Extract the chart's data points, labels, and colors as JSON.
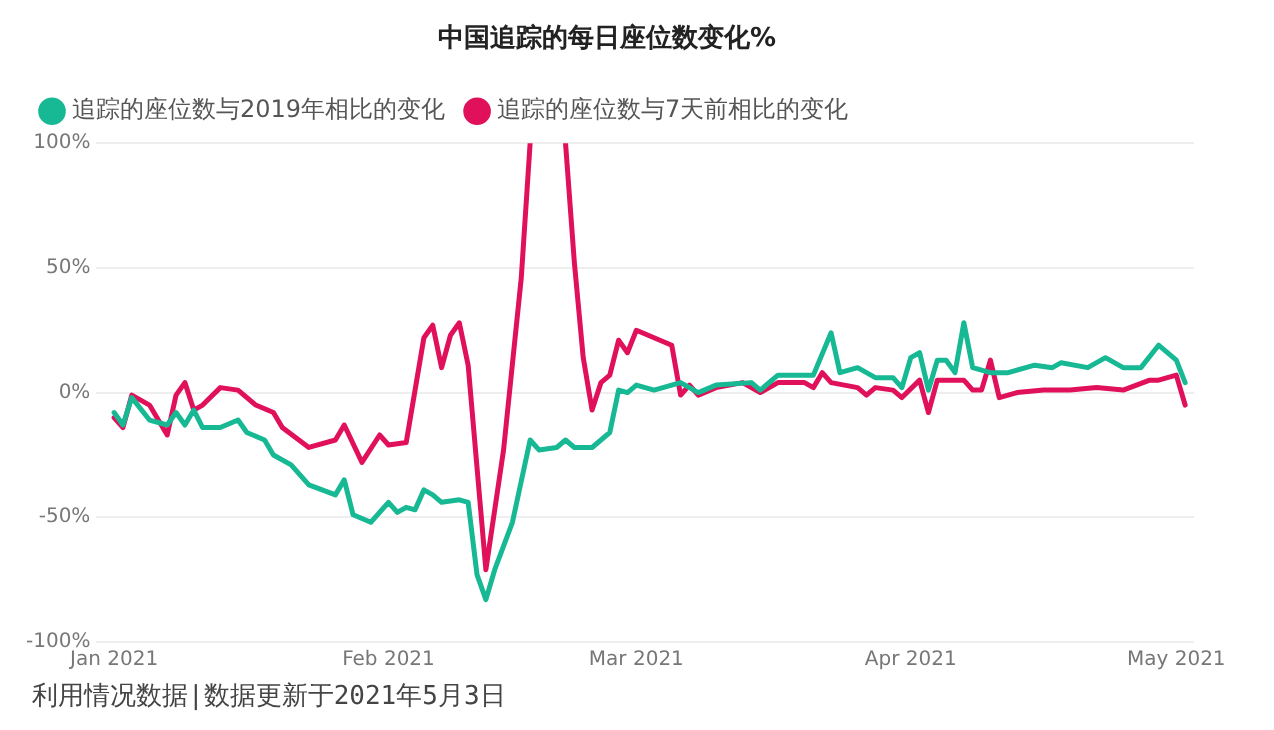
{
  "chart_data": {
    "type": "line",
    "title": "中国追踪的每日座位数变化%",
    "xlim": [
      "2020-12-30",
      "2021-05-03"
    ],
    "xticks": [
      {
        "value": "2021-01-01",
        "label": "Jan 2021"
      },
      {
        "value": "2021-02-01",
        "label": "Feb 2021"
      },
      {
        "value": "2021-03-01",
        "label": "Mar 2021"
      },
      {
        "value": "2021-04-01",
        "label": "Apr 2021"
      },
      {
        "value": "2021-05-01",
        "label": "May 2021"
      }
    ],
    "ylim": [
      -100,
      100
    ],
    "yticks": [
      {
        "value": -100,
        "label": "-100%"
      },
      {
        "value": -50,
        "label": "-50%"
      },
      {
        "value": 0,
        "label": "0%"
      },
      {
        "value": 50,
        "label": "50%"
      },
      {
        "value": 100,
        "label": "100%"
      }
    ],
    "grid": "y",
    "legend": "top left",
    "marker": "none",
    "line_style": "solid",
    "series": [
      {
        "name": "追踪的座位数与2019年相比的变化",
        "color": "#17b894",
        "x": [
          "2021-01-01",
          "2021-01-02",
          "2021-01-03",
          "2021-01-05",
          "2021-01-07",
          "2021-01-08",
          "2021-01-09",
          "2021-01-10",
          "2021-01-11",
          "2021-01-13",
          "2021-01-15",
          "2021-01-16",
          "2021-01-18",
          "2021-01-19",
          "2021-01-21",
          "2021-01-23",
          "2021-01-26",
          "2021-01-27",
          "2021-01-28",
          "2021-01-30",
          "2021-02-01",
          "2021-02-02",
          "2021-02-03",
          "2021-02-04",
          "2021-02-05",
          "2021-02-06",
          "2021-02-07",
          "2021-02-09",
          "2021-02-10",
          "2021-02-11",
          "2021-02-12",
          "2021-02-13",
          "2021-02-15",
          "2021-02-17",
          "2021-02-18",
          "2021-02-20",
          "2021-02-21",
          "2021-02-22",
          "2021-02-24",
          "2021-02-25",
          "2021-02-26",
          "2021-02-27",
          "2021-02-28",
          "2021-03-01",
          "2021-03-03",
          "2021-03-06",
          "2021-03-08",
          "2021-03-10",
          "2021-03-14",
          "2021-03-15",
          "2021-03-17",
          "2021-03-21",
          "2021-03-23",
          "2021-03-24",
          "2021-03-26",
          "2021-03-28",
          "2021-03-30",
          "2021-03-31",
          "2021-04-01",
          "2021-04-02",
          "2021-04-03",
          "2021-04-04",
          "2021-04-05",
          "2021-04-06",
          "2021-04-07",
          "2021-04-08",
          "2021-04-10",
          "2021-04-12",
          "2021-04-15",
          "2021-04-17",
          "2021-04-18",
          "2021-04-21",
          "2021-04-23",
          "2021-04-25",
          "2021-04-27",
          "2021-04-29",
          "2021-05-01",
          "2021-05-02"
        ],
        "values": [
          -8,
          -13,
          -2,
          -11,
          -13,
          -8,
          -13,
          -7,
          -14,
          -14,
          -11,
          -16,
          -19,
          -25,
          -29,
          -37,
          -41,
          -35,
          -49,
          -52,
          -44,
          -48,
          -46,
          -47,
          -39,
          -41,
          -44,
          -43,
          -44,
          -73,
          -83,
          -71,
          -52,
          -19,
          -23,
          -22,
          -19,
          -22,
          -22,
          -19,
          -16,
          1,
          0,
          3,
          1,
          4,
          0,
          3,
          4,
          1,
          7,
          7,
          24,
          8,
          10,
          6,
          6,
          2,
          14,
          16,
          1,
          13,
          13,
          8,
          28,
          10,
          8,
          8,
          11,
          10,
          12,
          10,
          14,
          10,
          10,
          19,
          13,
          4
        ]
      },
      {
        "name": "追踪的座位数与7天前相比的变化",
        "color": "#e0105a",
        "x": [
          "2021-01-01",
          "2021-01-02",
          "2021-01-03",
          "2021-01-05",
          "2021-01-07",
          "2021-01-08",
          "2021-01-09",
          "2021-01-10",
          "2021-01-11",
          "2021-01-13",
          "2021-01-15",
          "2021-01-17",
          "2021-01-19",
          "2021-01-20",
          "2021-01-23",
          "2021-01-26",
          "2021-01-27",
          "2021-01-29",
          "2021-01-31",
          "2021-02-01",
          "2021-02-03",
          "2021-02-05",
          "2021-02-06",
          "2021-02-07",
          "2021-02-08",
          "2021-02-09",
          "2021-02-10",
          "2021-02-12",
          "2021-02-14",
          "2021-02-16",
          "2021-02-17",
          "2021-02-18",
          "2021-02-20",
          "2021-02-21",
          "2021-02-22",
          "2021-02-23",
          "2021-02-24",
          "2021-02-25",
          "2021-02-26",
          "2021-02-27",
          "2021-02-28",
          "2021-03-01",
          "2021-03-03",
          "2021-03-05",
          "2021-03-06",
          "2021-03-07",
          "2021-03-08",
          "2021-03-10",
          "2021-03-13",
          "2021-03-15",
          "2021-03-17",
          "2021-03-20",
          "2021-03-21",
          "2021-03-22",
          "2021-03-23",
          "2021-03-26",
          "2021-03-27",
          "2021-03-28",
          "2021-03-30",
          "2021-03-31",
          "2021-04-02",
          "2021-04-03",
          "2021-04-04",
          "2021-04-07",
          "2021-04-08",
          "2021-04-09",
          "2021-04-10",
          "2021-04-11",
          "2021-04-13",
          "2021-04-16",
          "2021-04-19",
          "2021-04-22",
          "2021-04-25",
          "2021-04-28",
          "2021-04-29",
          "2021-05-01",
          "2021-05-02"
        ],
        "values": [
          -10,
          -14,
          -1,
          -5,
          -17,
          -1,
          4,
          -7,
          -5,
          2,
          1,
          -5,
          -8,
          -14,
          -22,
          -19,
          -13,
          -28,
          -17,
          -21,
          -20,
          22,
          27,
          10,
          23,
          28,
          11,
          -71,
          -23,
          46,
          100,
          null,
          null,
          100,
          52,
          14,
          -7,
          4,
          7,
          21,
          16,
          25,
          22,
          19,
          -1,
          3,
          -1,
          2,
          4,
          0,
          4,
          4,
          2,
          8,
          4,
          2,
          -1,
          2,
          1,
          -2,
          5,
          -8,
          5,
          5,
          1,
          1,
          13,
          -2,
          0,
          1,
          1,
          2,
          1,
          5,
          5,
          7,
          -5
        ]
      }
    ],
    "annotations": [
      "利用情况数据|数据更新于2021年5月3日"
    ]
  }
}
